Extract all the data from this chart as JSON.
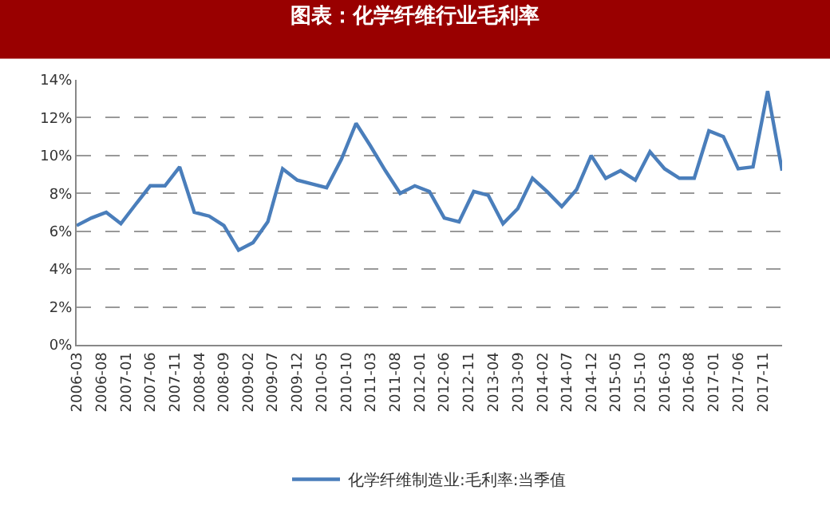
{
  "chart_data": {
    "type": "line",
    "title": "图表：化学纤维行业毛利率",
    "x": [
      "2006-03",
      "2006-06",
      "2006-09",
      "2006-12",
      "2007-03",
      "2007-06",
      "2007-09",
      "2007-12",
      "2008-03",
      "2008-06",
      "2008-09",
      "2008-12",
      "2009-03",
      "2009-06",
      "2009-09",
      "2009-12",
      "2010-03",
      "2010-06",
      "2010-09",
      "2010-12",
      "2011-03",
      "2011-06",
      "2011-09",
      "2011-12",
      "2012-03",
      "2012-06",
      "2012-09",
      "2012-12",
      "2013-03",
      "2013-06",
      "2013-09",
      "2013-12",
      "2014-03",
      "2014-06",
      "2014-09",
      "2014-12",
      "2015-03",
      "2015-06",
      "2015-09",
      "2015-12",
      "2016-03",
      "2016-06",
      "2016-09",
      "2016-12",
      "2017-03",
      "2017-06",
      "2017-09",
      "2017-12",
      "2018-03"
    ],
    "series": [
      {
        "name": "化学纤维制造业:毛利率:当季值",
        "color": "#4a7ebb",
        "values": [
          6.3,
          6.7,
          7.0,
          6.4,
          7.4,
          8.4,
          8.4,
          9.4,
          7.0,
          6.8,
          6.3,
          5.0,
          5.4,
          6.5,
          9.3,
          8.7,
          8.5,
          8.3,
          9.8,
          11.7,
          10.5,
          9.2,
          8.0,
          8.4,
          8.1,
          6.7,
          6.5,
          8.1,
          7.9,
          6.4,
          7.2,
          8.8,
          8.1,
          7.3,
          8.2,
          10.0,
          8.8,
          9.2,
          8.7,
          10.2,
          9.3,
          8.8,
          8.8,
          11.3,
          11.0,
          9.3,
          9.4,
          13.4,
          9.2
        ]
      }
    ],
    "xlim": [
      "2006-03",
      "2018-03"
    ],
    "xticks": [
      "2006-03",
      "2006-08",
      "2007-01",
      "2007-06",
      "2007-11",
      "2008-04",
      "2008-09",
      "2009-02",
      "2009-07",
      "2009-12",
      "2010-05",
      "2010-10",
      "2011-03",
      "2011-08",
      "2012-01",
      "2012-06",
      "2012-11",
      "2013-04",
      "2013-09",
      "2014-02",
      "2014-07",
      "2014-12",
      "2015-05",
      "2015-10",
      "2016-03",
      "2016-08",
      "2017-01",
      "2017-06",
      "2017-11"
    ],
    "ylim": [
      0,
      14
    ],
    "yticks": [
      {
        "value": 0,
        "label": "0%"
      },
      {
        "value": 2,
        "label": "2%"
      },
      {
        "value": 4,
        "label": "4%"
      },
      {
        "value": 6,
        "label": "6%"
      },
      {
        "value": 8,
        "label": "8%"
      },
      {
        "value": 10,
        "label": "10%"
      },
      {
        "value": 12,
        "label": "12%"
      },
      {
        "value": 14,
        "label": "14%"
      }
    ],
    "grid": "y",
    "legend": "bottom",
    "marker": "none",
    "line_style": "solid"
  }
}
